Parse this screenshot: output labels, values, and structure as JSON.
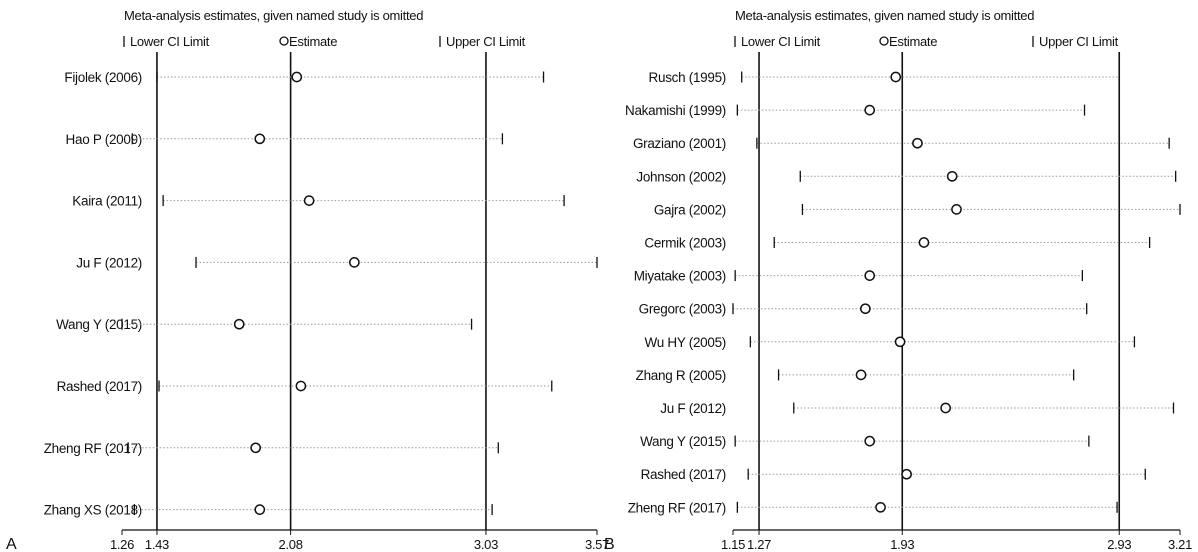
{
  "chart_data": [
    {
      "type": "scatter",
      "panel_label": "A",
      "title": "Meta-analysis estimates, given named study is omitted",
      "legend": {
        "lower": "Lower CI Limit",
        "estimate": "Estimate",
        "upper": "Upper CI Limit"
      },
      "xlim": [
        1.26,
        3.57
      ],
      "ticks": [
        {
          "value": 1.26,
          "label": "1.26"
        },
        {
          "value": 1.43,
          "label": "1.43"
        },
        {
          "value": 2.08,
          "label": "2.08"
        },
        {
          "value": 3.03,
          "label": "3.03"
        },
        {
          "value": 3.57,
          "label": "3.57"
        }
      ],
      "reference_lines": {
        "lower": 1.43,
        "estimate": 2.08,
        "upper": 3.03
      },
      "studies": [
        {
          "label": "Fijolek (2006)",
          "lower": 1.43,
          "estimate": 2.11,
          "upper": 3.31
        },
        {
          "label": "Hao P (2009)",
          "lower": 1.31,
          "estimate": 1.93,
          "upper": 3.11
        },
        {
          "label": "Kaira (2011)",
          "lower": 1.46,
          "estimate": 2.17,
          "upper": 3.41
        },
        {
          "label": "Ju F (2012)",
          "lower": 1.62,
          "estimate": 2.39,
          "upper": 3.57
        },
        {
          "label": "Wang Y (2015)",
          "lower": 1.26,
          "estimate": 1.83,
          "upper": 2.96
        },
        {
          "label": "Rashed (2017)",
          "lower": 1.44,
          "estimate": 2.13,
          "upper": 3.35
        },
        {
          "label": "Zheng RF (2017)",
          "lower": 1.29,
          "estimate": 1.91,
          "upper": 3.09
        },
        {
          "label": "Zhang XS (2018)",
          "lower": 1.32,
          "estimate": 1.93,
          "upper": 3.06
        }
      ]
    },
    {
      "type": "scatter",
      "panel_label": "B",
      "title": "Meta-analysis estimates, given named study is omitted",
      "legend": {
        "lower": "Lower CI Limit",
        "estimate": "Estimate",
        "upper": "Upper CI Limit"
      },
      "xlim": [
        1.15,
        3.21
      ],
      "ticks": [
        {
          "value": 1.15,
          "label": "1.15"
        },
        {
          "value": 1.27,
          "label": "1.27"
        },
        {
          "value": 1.93,
          "label": "1.93"
        },
        {
          "value": 2.93,
          "label": "2.93"
        },
        {
          "value": 3.21,
          "label": "3.21"
        }
      ],
      "reference_lines": {
        "lower": 1.27,
        "estimate": 1.93,
        "upper": 2.93
      },
      "studies": [
        {
          "label": "Rusch (1995)",
          "lower": 1.19,
          "estimate": 1.9,
          "upper": 2.93
        },
        {
          "label": "Nakamishi (1999)",
          "lower": 1.17,
          "estimate": 1.78,
          "upper": 2.77
        },
        {
          "label": "Graziano (2001)",
          "lower": 1.26,
          "estimate": 2.0,
          "upper": 3.16
        },
        {
          "label": "Johnson (2002)",
          "lower": 1.46,
          "estimate": 2.16,
          "upper": 3.19
        },
        {
          "label": "Gajra (2002)",
          "lower": 1.47,
          "estimate": 2.18,
          "upper": 3.21
        },
        {
          "label": "Cermik (2003)",
          "lower": 1.34,
          "estimate": 2.03,
          "upper": 3.07
        },
        {
          "label": "Miyatake (2003)",
          "lower": 1.16,
          "estimate": 1.78,
          "upper": 2.76
        },
        {
          "label": "Gregorc (2003)",
          "lower": 1.15,
          "estimate": 1.76,
          "upper": 2.78
        },
        {
          "label": "Wu HY (2005)",
          "lower": 1.23,
          "estimate": 1.92,
          "upper": 3.0
        },
        {
          "label": "Zhang R (2005)",
          "lower": 1.36,
          "estimate": 1.74,
          "upper": 2.72
        },
        {
          "label": "Ju F (2012)",
          "lower": 1.43,
          "estimate": 2.13,
          "upper": 3.18
        },
        {
          "label": "Wang Y (2015)",
          "lower": 1.16,
          "estimate": 1.78,
          "upper": 2.79
        },
        {
          "label": "Rashed (2017)",
          "lower": 1.22,
          "estimate": 1.95,
          "upper": 3.05
        },
        {
          "label": "Zheng RF (2017)",
          "lower": 1.17,
          "estimate": 1.83,
          "upper": 2.92
        }
      ]
    }
  ]
}
